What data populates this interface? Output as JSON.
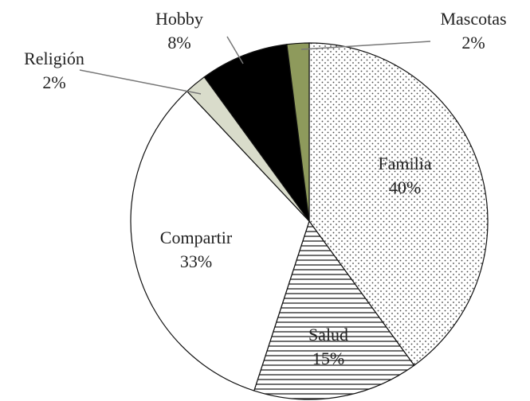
{
  "chart_data": {
    "type": "pie",
    "categories": [
      "Familia",
      "Salud",
      "Compartir",
      "Religión",
      "Hobby",
      "Mascotas"
    ],
    "values": [
      40,
      15,
      33,
      2,
      8,
      2
    ],
    "value_labels": [
      "40%",
      "15%",
      "33%",
      "2%",
      "8%",
      "2%"
    ],
    "colors": [
      "#ffffff",
      "#ffffff",
      "#ffffff",
      "#d9dccb",
      "#000000",
      "#8e9a5c"
    ],
    "patterns": [
      "dots",
      "hlines",
      "none",
      "none",
      "none",
      "none"
    ]
  }
}
